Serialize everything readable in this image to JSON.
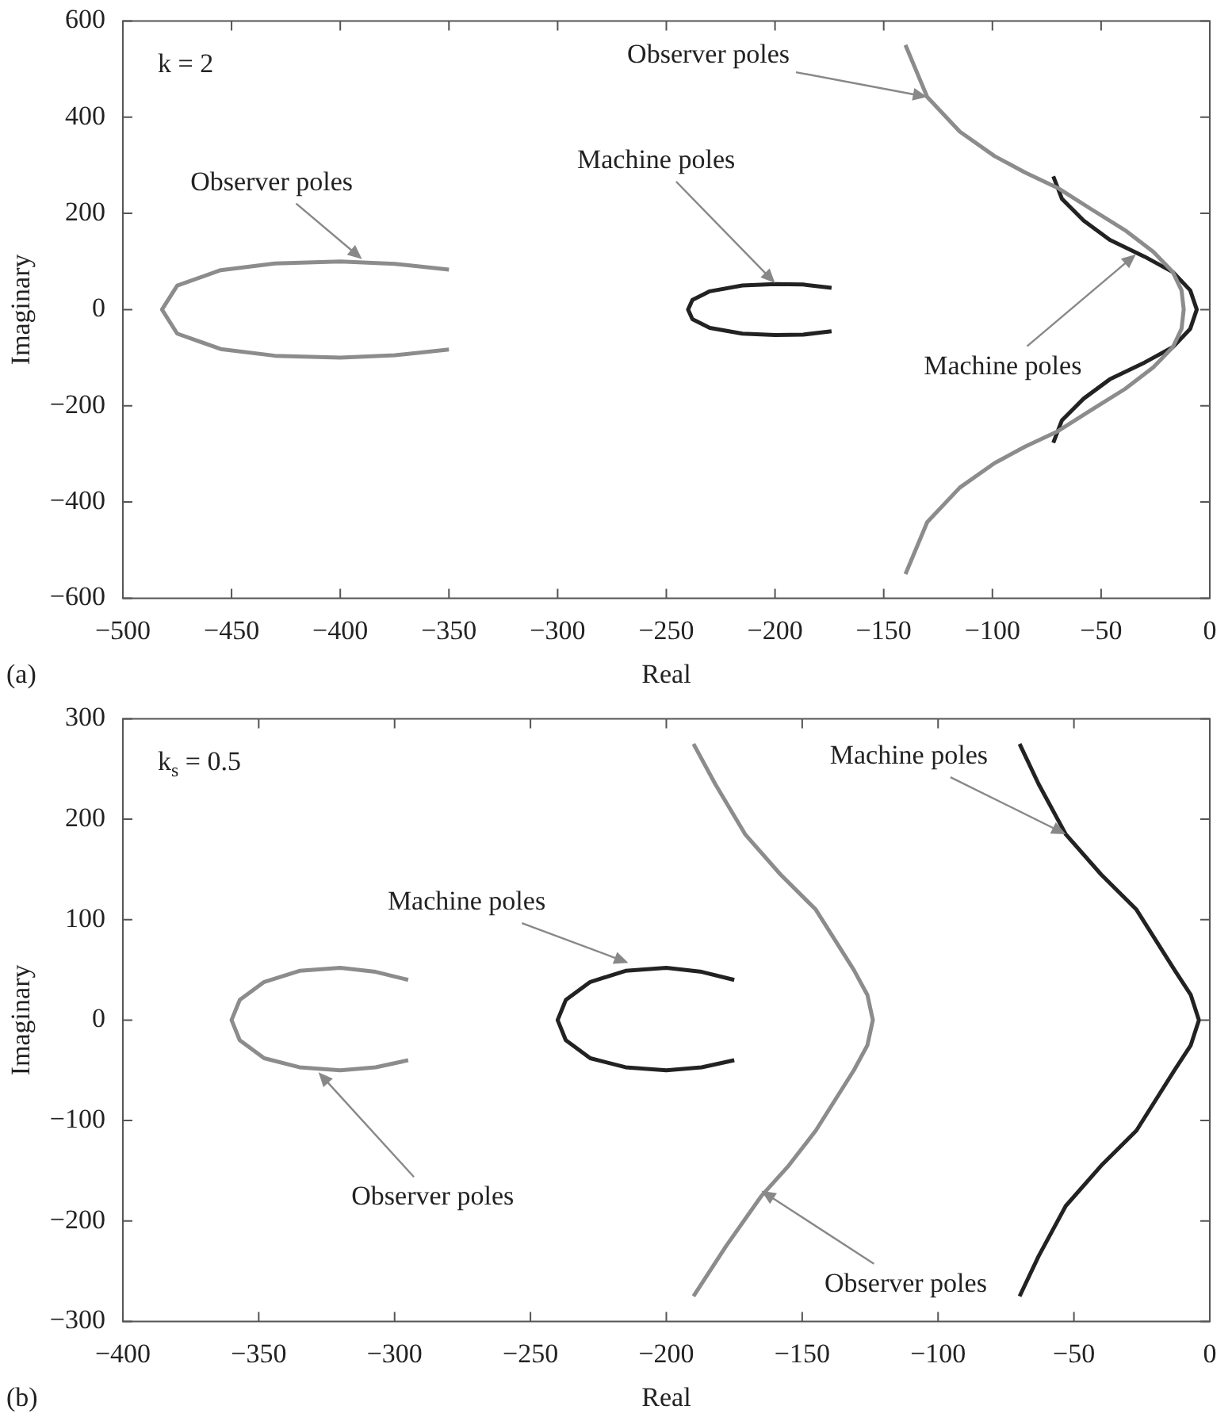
{
  "chart_data": [
    {
      "type": "line",
      "xlabel": "Real",
      "ylabel": "Imaginary",
      "xlim": [
        -500,
        0
      ],
      "xticks": [
        {
          "value": -500,
          "label": "−500"
        },
        {
          "value": -450,
          "label": "−450"
        },
        {
          "value": -400,
          "label": "−400"
        },
        {
          "value": -350,
          "label": "−350"
        },
        {
          "value": -300,
          "label": "−300"
        },
        {
          "value": -250,
          "label": "−250"
        },
        {
          "value": -200,
          "label": "−200"
        },
        {
          "value": -150,
          "label": "−150"
        },
        {
          "value": -100,
          "label": "−100"
        },
        {
          "value": -50,
          "label": "−50"
        },
        0
      ],
      "ylim": [
        -600,
        600
      ],
      "yticks": [
        {
          "value": -600,
          "label": "−600"
        },
        {
          "value": -400,
          "label": "−400"
        },
        {
          "value": -200,
          "label": "−200"
        },
        0,
        200,
        400,
        600
      ],
      "series": [
        {
          "color": "#8c8c8c",
          "x": [
            -350,
            -375,
            -400,
            -430,
            -455,
            -475,
            -482,
            -475,
            -455,
            -430,
            -400,
            -375,
            -350
          ],
          "values": [
            83,
            95,
            100,
            96,
            82,
            50,
            0,
            -50,
            -82,
            -96,
            -100,
            -95,
            -83
          ]
        },
        {
          "color": "#222222",
          "x": [
            -174,
            -187,
            -200,
            -215,
            -230,
            -238,
            -240,
            -238,
            -230,
            -215,
            -200,
            -187,
            -174
          ],
          "values": [
            45,
            52,
            53,
            50,
            38,
            20,
            0,
            -20,
            -38,
            -50,
            -53,
            -52,
            -45
          ]
        },
        {
          "color": "#8c8c8c",
          "x": [
            -140,
            -130,
            -115,
            -99,
            -85,
            -70,
            -55,
            -39,
            -26,
            -17,
            -13,
            -12,
            -13,
            -17,
            -26,
            -39,
            -55,
            -70,
            -85,
            -99,
            -115,
            -130,
            -140
          ],
          "values": [
            550,
            442,
            370,
            319,
            285,
            253,
            210,
            165,
            120,
            78,
            40,
            0,
            -40,
            -78,
            -120,
            -165,
            -210,
            -253,
            -285,
            -319,
            -370,
            -442,
            -550
          ]
        },
        {
          "color": "#222222",
          "x": [
            -72,
            -68,
            -58,
            -46,
            -30,
            -17,
            -9,
            -6,
            -9,
            -17,
            -30,
            -46,
            -58,
            -68,
            -72
          ],
          "values": [
            277,
            230,
            185,
            145,
            110,
            78,
            40,
            0,
            -40,
            -78,
            -110,
            -145,
            -185,
            -230,
            -277
          ]
        }
      ],
      "annotations": [
        "k = 2",
        "(a)",
        {
          "text": "Observer poles",
          "x": -390,
          "y": 105
        },
        {
          "text": "Machine poles",
          "x": -200,
          "y": 55
        },
        {
          "text": "Observer poles",
          "x": -130,
          "y": 442
        },
        {
          "text": "Machine poles",
          "x": -34,
          "y": 115
        }
      ]
    },
    {
      "type": "line",
      "xlabel": "Real",
      "ylabel": "Imaginary",
      "xlim": [
        -400,
        0
      ],
      "xticks": [
        {
          "value": -400,
          "label": "−400"
        },
        {
          "value": -350,
          "label": "−350"
        },
        {
          "value": -300,
          "label": "−300"
        },
        {
          "value": -250,
          "label": "−250"
        },
        {
          "value": -200,
          "label": "−200"
        },
        {
          "value": -150,
          "label": "−150"
        },
        {
          "value": -100,
          "label": "−100"
        },
        {
          "value": -50,
          "label": "−50"
        },
        0
      ],
      "ylim": [
        -300,
        300
      ],
      "yticks": [
        {
          "value": -300,
          "label": "−300"
        },
        {
          "value": -200,
          "label": "−200"
        },
        {
          "value": -100,
          "label": "−100"
        },
        0,
        100,
        200,
        300
      ],
      "series": [
        {
          "color": "#8c8c8c",
          "x": [
            -295,
            -307,
            -320,
            -335,
            -348,
            -357,
            -360,
            -357,
            -348,
            -335,
            -320,
            -307,
            -295
          ],
          "values": [
            40,
            48,
            52,
            49,
            38,
            20,
            0,
            -20,
            -38,
            -47,
            -50,
            -47,
            -40
          ]
        },
        {
          "color": "#222222",
          "x": [
            -175,
            -187,
            -200,
            -215,
            -228,
            -237,
            -240,
            -237,
            -228,
            -215,
            -200,
            -187,
            -175
          ],
          "values": [
            40,
            48,
            52,
            49,
            38,
            20,
            0,
            -20,
            -38,
            -47,
            -50,
            -47,
            -40
          ]
        },
        {
          "color": "#8c8c8c",
          "x": [
            -190,
            -182,
            -171,
            -158,
            -145,
            -131,
            -126,
            -124,
            -126,
            -131,
            -145,
            -155,
            -165,
            -178,
            -190
          ],
          "values": [
            275,
            235,
            185,
            145,
            110,
            50,
            25,
            0,
            -25,
            -50,
            -110,
            -145,
            -175,
            -225,
            -275
          ]
        },
        {
          "color": "#222222",
          "x": [
            -70,
            -63,
            -53,
            -40,
            -27,
            -13,
            -7,
            -4,
            -7,
            -13,
            -27,
            -40,
            -53,
            -63,
            -70
          ],
          "values": [
            275,
            235,
            185,
            145,
            110,
            50,
            25,
            0,
            -25,
            -50,
            -110,
            -145,
            -185,
            -235,
            -275
          ]
        }
      ],
      "annotations": [
        "k$_{s}$ = 0.5",
        "(b)",
        {
          "text": "Machine poles",
          "x": -214,
          "y": 57
        },
        {
          "text": "Observer poles",
          "x": -328,
          "y": -52
        },
        {
          "text": "Machine poles",
          "x": -53,
          "y": 185
        },
        {
          "text": "Observer poles",
          "x": -165,
          "y": -170
        }
      ]
    }
  ]
}
